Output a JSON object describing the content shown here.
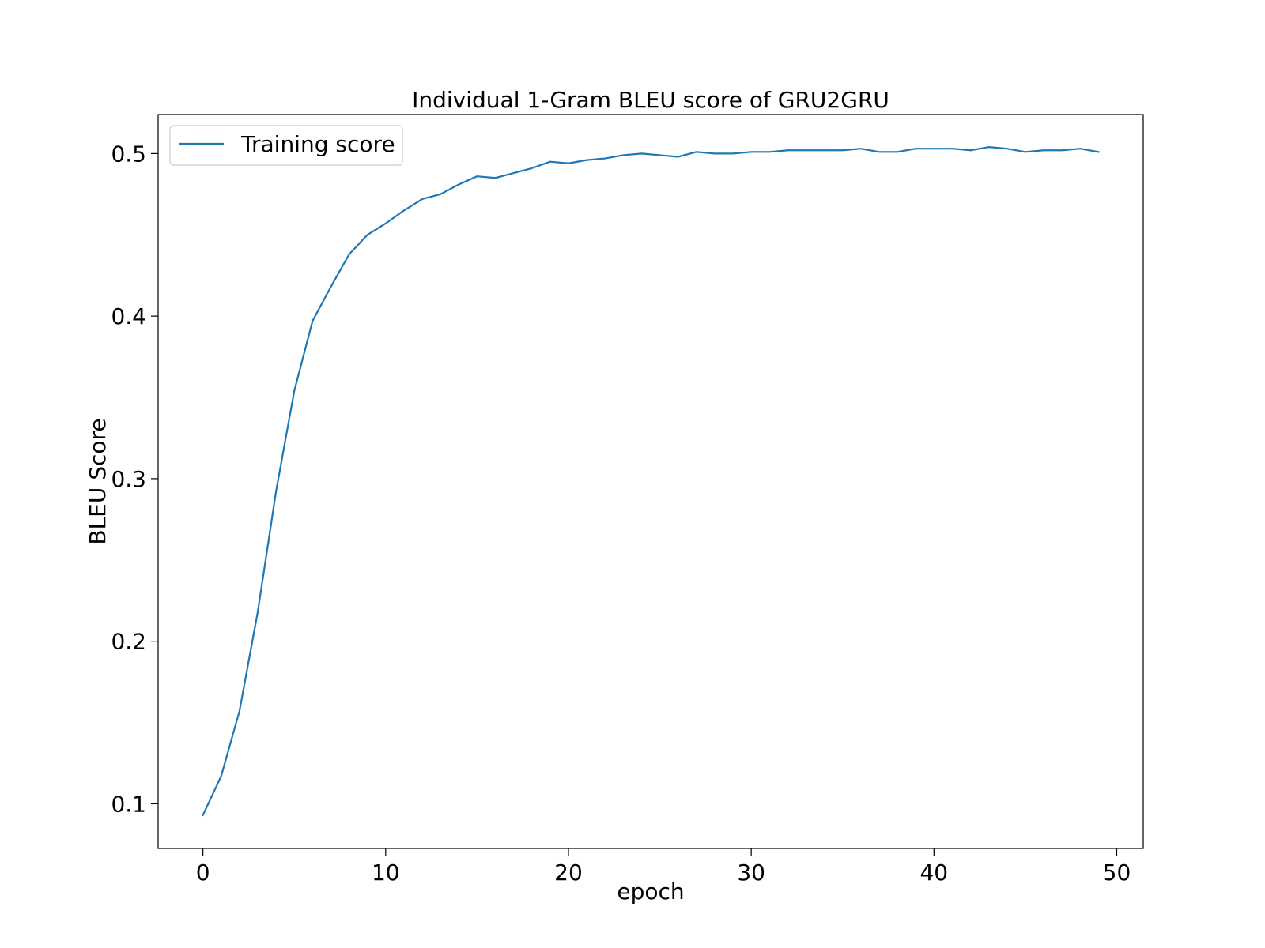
{
  "chart_data": {
    "type": "line",
    "title": "Individual 1-Gram BLEU score of GRU2GRU",
    "xlabel": "epoch",
    "ylabel": "BLEU Score",
    "xlim": [
      -2.45,
      51.45
    ],
    "ylim": [
      0.0725,
      0.524
    ],
    "xticks": [
      0,
      10,
      20,
      30,
      40,
      50
    ],
    "xtick_labels": [
      "0",
      "10",
      "20",
      "30",
      "40",
      "50"
    ],
    "yticks": [
      0.1,
      0.2,
      0.3,
      0.4,
      0.5
    ],
    "ytick_labels": [
      "0.1",
      "0.2",
      "0.3",
      "0.4",
      "0.5"
    ],
    "grid": false,
    "legend_position": "top-left",
    "series": [
      {
        "name": "Training score",
        "color": "#1f77b4",
        "x": [
          0,
          1,
          2,
          3,
          4,
          5,
          6,
          7,
          8,
          9,
          10,
          11,
          12,
          13,
          14,
          15,
          16,
          17,
          18,
          19,
          20,
          21,
          22,
          23,
          24,
          25,
          26,
          27,
          28,
          29,
          30,
          31,
          32,
          33,
          34,
          35,
          36,
          37,
          38,
          39,
          40,
          41,
          42,
          43,
          44,
          45,
          46,
          47,
          48,
          49
        ],
        "values": [
          0.093,
          0.117,
          0.157,
          0.218,
          0.292,
          0.354,
          0.397,
          0.418,
          0.438,
          0.45,
          0.457,
          0.465,
          0.472,
          0.475,
          0.481,
          0.486,
          0.485,
          0.488,
          0.491,
          0.495,
          0.494,
          0.496,
          0.497,
          0.499,
          0.5,
          0.499,
          0.498,
          0.501,
          0.5,
          0.5,
          0.501,
          0.501,
          0.502,
          0.502,
          0.502,
          0.502,
          0.503,
          0.501,
          0.501,
          0.503,
          0.503,
          0.503,
          0.502,
          0.504,
          0.503,
          0.501,
          0.502,
          0.502,
          0.503,
          0.501
        ]
      }
    ]
  }
}
